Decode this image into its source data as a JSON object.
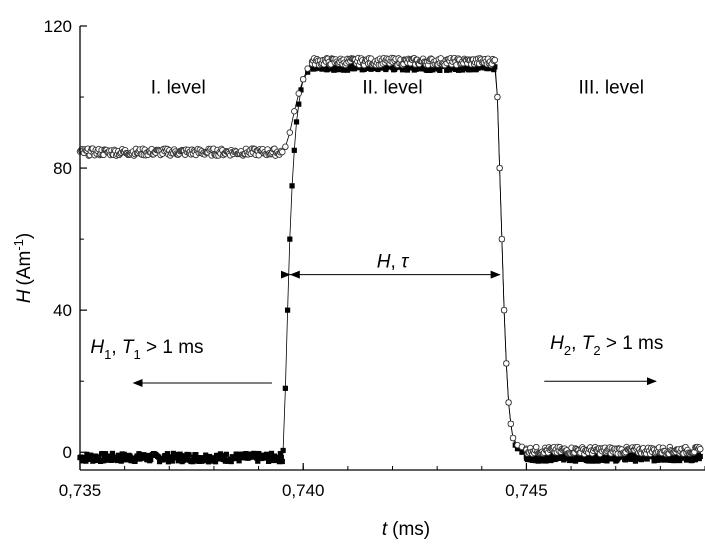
{
  "chart_data": {
    "type": "scatter",
    "xlabel": {
      "var": "t",
      "unit": "(ms)"
    },
    "ylabel": {
      "var": "H",
      "unit": "(Am",
      "exp": "-1",
      "close": ")"
    },
    "xlim": [
      0.735,
      0.749
    ],
    "ylim": [
      -5,
      120
    ],
    "x_ticks": [
      {
        "value": 0.735,
        "label": "0,735"
      },
      {
        "value": 0.74,
        "label": "0,740"
      },
      {
        "value": 0.745,
        "label": "0,745"
      }
    ],
    "y_ticks": [
      {
        "value": 0,
        "label": "0"
      },
      {
        "value": 40,
        "label": "40"
      },
      {
        "value": 80,
        "label": "80"
      },
      {
        "value": 120,
        "label": "120"
      }
    ],
    "grid": false,
    "series": [
      {
        "marker": "filled-square",
        "color": "#000000",
        "segments": [
          {
            "x_start": 0.735,
            "x_end": 0.73955,
            "y": -1.5,
            "noise": 1.2
          },
          {
            "x": [
              0.73955,
              0.7396,
              0.73965,
              0.7397,
              0.73975,
              0.7398,
              0.73985,
              0.7399,
              0.73995,
              0.74,
              0.7401,
              0.7402
            ],
            "y": [
              0.5,
              18,
              40,
              60,
              75,
              85,
              93,
              98,
              102,
              105,
              107,
              108.5
            ]
          },
          {
            "x_start": 0.7402,
            "x_end": 0.7443,
            "y": 108.5,
            "noise": 1.0
          },
          {
            "x": [
              0.74435,
              0.7444,
              0.74445,
              0.7445,
              0.74455,
              0.7446,
              0.74465,
              0.7447,
              0.74475,
              0.7448,
              0.7449,
              0.745
            ],
            "y": [
              100,
              80,
              60,
              40,
              25,
              14,
              8,
              4,
              2,
              1,
              0,
              -1
            ]
          },
          {
            "x_start": 0.745,
            "x_end": 0.7489,
            "y": -1.5,
            "noise": 1.0
          }
        ]
      },
      {
        "marker": "open-circle",
        "color": "#000000",
        "segments": [
          {
            "x_start": 0.735,
            "x_end": 0.73955,
            "y": 84.5,
            "noise": 1.0
          },
          {
            "x": [
              0.7396,
              0.7397,
              0.7398,
              0.7399,
              0.74,
              0.7401,
              0.7402
            ],
            "y": [
              86,
              90,
              96,
              101,
              105,
              108,
              110
            ]
          },
          {
            "x_start": 0.7402,
            "x_end": 0.7443,
            "y": 110,
            "noise": 1.0
          },
          {
            "x": [
              0.74435,
              0.7444,
              0.74445,
              0.7445,
              0.74455,
              0.7446,
              0.74465,
              0.7447,
              0.7448,
              0.7449,
              0.745
            ],
            "y": [
              100,
              80,
              60,
              40,
              25,
              14,
              8,
              4,
              2,
              1.5,
              1
            ]
          },
          {
            "x_start": 0.745,
            "x_end": 0.7489,
            "y": 0.5,
            "noise": 1.0
          }
        ]
      }
    ],
    "annotations": {
      "levels": [
        {
          "text": "I. level",
          "x": 0.7372,
          "y": 101
        },
        {
          "text": "II. level",
          "x": 0.742,
          "y": 101
        },
        {
          "text": "III. level",
          "x": 0.7469,
          "y": 101
        }
      ],
      "middle": {
        "var": "H",
        "sep": ", ",
        "var2": "τ",
        "x": 0.742,
        "y": 52,
        "arrow_from": 0.7397,
        "arrow_to": 0.7444,
        "arrow_y": 50
      },
      "left": {
        "v1": "H",
        "s1": "1",
        "mid": ", ",
        "v2": "T",
        "s2": "1",
        "tail": " > 1 ms",
        "x": 0.7365,
        "y": 28,
        "arrow_from": 0.7393,
        "arrow_to": 0.7362,
        "arrow_y": 19.5
      },
      "right": {
        "v1": "H",
        "s1": "2",
        "mid": ", ",
        "v2": "T",
        "s2": "2",
        "tail": " > 1 ms",
        "x": 0.7468,
        "y": 29,
        "arrow_from": 0.7454,
        "arrow_to": 0.7479,
        "arrow_y": 20
      }
    }
  }
}
